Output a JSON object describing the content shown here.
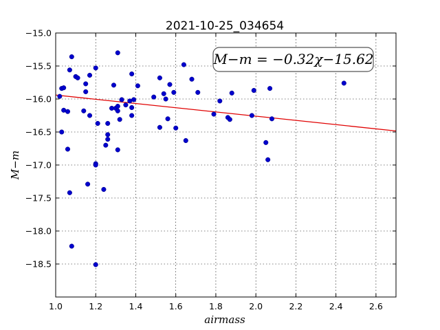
{
  "chart_data": {
    "type": "scatter",
    "title": "2021-10-25_034654",
    "xlabel": "airmass",
    "ylabel": "M−m",
    "xlim": [
      1.0,
      2.7
    ],
    "ylim": [
      -15.0,
      -19.0
    ],
    "y_inverted": true,
    "grid": true,
    "xticks": [
      1.0,
      1.2,
      1.4,
      1.6,
      1.8,
      2.0,
      2.2,
      2.4,
      2.6
    ],
    "xtick_labels": [
      "1.0",
      "1.2",
      "1.4",
      "1.6",
      "1.8",
      "2.0",
      "2.2",
      "2.4",
      "2.6"
    ],
    "yticks": [
      -15.0,
      -15.5,
      -16.0,
      -16.5,
      -17.0,
      -17.5,
      -18.0,
      -18.5
    ],
    "ytick_labels": [
      "−15.0",
      "−15.5",
      "−16.0",
      "−16.5",
      "−17.0",
      "−17.5",
      "−18.0",
      "−18.5"
    ],
    "annotation": "M−m = −0.32χ−15.62",
    "fit_line": {
      "slope": -0.32,
      "intercept": -15.62,
      "color": "#e00000"
    },
    "point_color": "#0000cc",
    "points": [
      [
        1.02,
        -15.96
      ],
      [
        1.03,
        -15.84
      ],
      [
        1.04,
        -15.83
      ],
      [
        1.03,
        -16.5
      ],
      [
        1.04,
        -16.17
      ],
      [
        1.06,
        -16.19
      ],
      [
        1.06,
        -16.76
      ],
      [
        1.07,
        -15.56
      ],
      [
        1.08,
        -15.36
      ],
      [
        1.07,
        -17.42
      ],
      [
        1.08,
        -18.23
      ],
      [
        1.1,
        -15.66
      ],
      [
        1.11,
        -15.68
      ],
      [
        1.14,
        -16.18
      ],
      [
        1.15,
        -15.89
      ],
      [
        1.15,
        -15.77
      ],
      [
        1.17,
        -15.64
      ],
      [
        1.16,
        -17.29
      ],
      [
        1.17,
        -16.25
      ],
      [
        1.2,
        -15.53
      ],
      [
        1.21,
        -16.37
      ],
      [
        1.2,
        -16.98
      ],
      [
        1.2,
        -17.0
      ],
      [
        1.2,
        -18.51
      ],
      [
        1.24,
        -17.37
      ],
      [
        1.25,
        -16.7
      ],
      [
        1.26,
        -16.54
      ],
      [
        1.26,
        -16.61
      ],
      [
        1.26,
        -16.37
      ],
      [
        1.28,
        -16.14
      ],
      [
        1.29,
        -15.79
      ],
      [
        1.3,
        -16.14
      ],
      [
        1.31,
        -16.11
      ],
      [
        1.31,
        -16.18
      ],
      [
        1.31,
        -15.3
      ],
      [
        1.31,
        -16.77
      ],
      [
        1.32,
        -16.31
      ],
      [
        1.33,
        -16.01
      ],
      [
        1.35,
        -16.09
      ],
      [
        1.37,
        -16.03
      ],
      [
        1.38,
        -15.62
      ],
      [
        1.38,
        -16.13
      ],
      [
        1.38,
        -16.25
      ],
      [
        1.39,
        -16.01
      ],
      [
        1.41,
        -15.8
      ],
      [
        1.49,
        -15.97
      ],
      [
        1.52,
        -15.68
      ],
      [
        1.52,
        -16.43
      ],
      [
        1.54,
        -15.92
      ],
      [
        1.55,
        -16.0
      ],
      [
        1.56,
        -16.3
      ],
      [
        1.57,
        -15.78
      ],
      [
        1.59,
        -15.9
      ],
      [
        1.6,
        -16.44
      ],
      [
        1.64,
        -15.48
      ],
      [
        1.65,
        -16.63
      ],
      [
        1.68,
        -15.7
      ],
      [
        1.71,
        -15.9
      ],
      [
        1.79,
        -16.23
      ],
      [
        1.82,
        -16.03
      ],
      [
        1.86,
        -16.28
      ],
      [
        1.87,
        -16.31
      ],
      [
        1.88,
        -15.91
      ],
      [
        1.98,
        -16.25
      ],
      [
        1.99,
        -15.87
      ],
      [
        2.05,
        -16.66
      ],
      [
        2.06,
        -16.92
      ],
      [
        2.07,
        -15.84
      ],
      [
        2.08,
        -16.3
      ],
      [
        2.44,
        -15.76
      ]
    ]
  }
}
